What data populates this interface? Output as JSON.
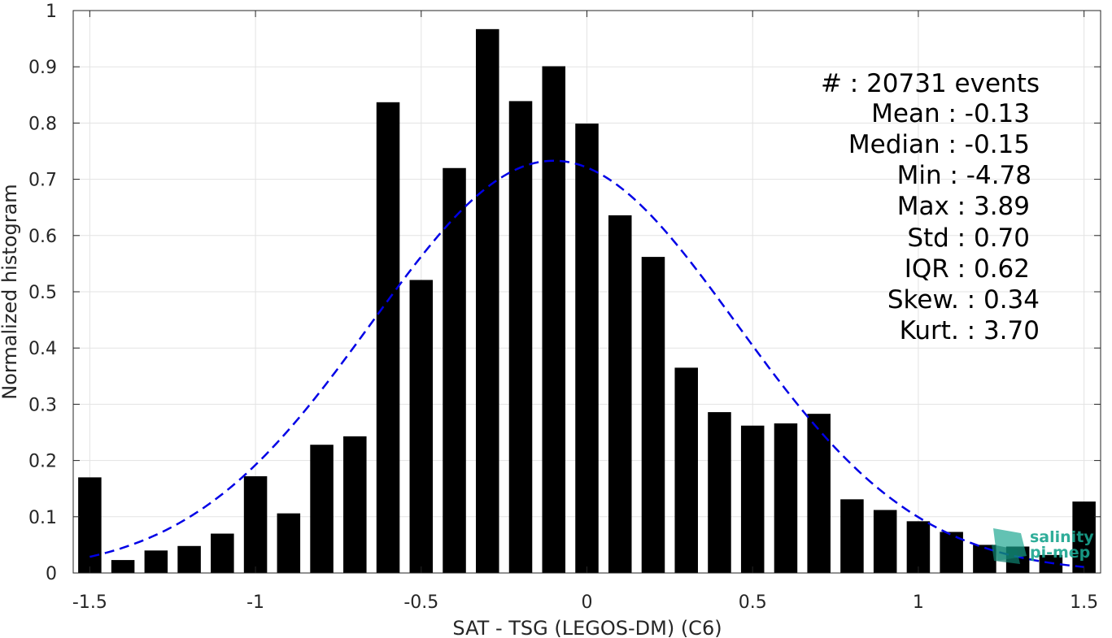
{
  "chart_data": {
    "type": "bar",
    "xlabel": "SAT - TSG (LEGOS-DM) (C6)",
    "ylabel": "Normalized histogram",
    "xlim": [
      -1.55,
      1.55
    ],
    "ylim": [
      0,
      1
    ],
    "grid": true,
    "bar_width": 0.07,
    "xticks": [
      -1.5,
      -1,
      -0.5,
      0,
      0.5,
      1,
      1.5
    ],
    "xtick_labels": [
      "-1.5",
      "-1",
      "-0.5",
      "0",
      "0.5",
      "1",
      "1.5"
    ],
    "yticks": [
      0,
      0.1,
      0.2,
      0.3,
      0.4,
      0.5,
      0.6,
      0.7,
      0.8,
      0.9,
      1
    ],
    "ytick_labels": [
      "0",
      "0.1",
      "0.2",
      "0.3",
      "0.4",
      "0.5",
      "0.6",
      "0.7",
      "0.8",
      "0.9",
      "1"
    ],
    "x": [
      -1.5,
      -1.4,
      -1.3,
      -1.2,
      -1.1,
      -1.0,
      -0.9,
      -0.8,
      -0.7,
      -0.6,
      -0.5,
      -0.4,
      -0.3,
      -0.2,
      -0.1,
      0.0,
      0.1,
      0.2,
      0.3,
      0.4,
      0.5,
      0.6,
      0.7,
      0.8,
      0.9,
      1.0,
      1.1,
      1.2,
      1.3,
      1.4,
      1.5
    ],
    "values": [
      0.17,
      0.023,
      0.04,
      0.048,
      0.07,
      0.172,
      0.106,
      0.228,
      0.243,
      0.837,
      0.521,
      0.72,
      0.967,
      0.839,
      0.901,
      0.799,
      0.636,
      0.562,
      0.365,
      0.286,
      0.262,
      0.266,
      0.283,
      0.131,
      0.112,
      0.092,
      0.073,
      0.05,
      0.047,
      0.032,
      0.127
    ],
    "bar_color": "#000000",
    "fit_curve": {
      "style": "dashed",
      "color": "#0000e6",
      "mean": -0.1,
      "std": 0.55,
      "peak": 0.733,
      "x_range": [
        -1.5,
        1.5
      ]
    },
    "annotations": [
      "#  : 20731 events",
      "Mean : -0.13",
      "Median : -0.15",
      "Min : -4.78",
      "Max : 3.89",
      "Std : 0.70",
      "IQR : 0.62",
      "Skew. : 0.34",
      "Kurt. : 3.70"
    ]
  },
  "logo": {
    "line1": "salinity",
    "line2": "pi-mep",
    "color": "#19a58f"
  }
}
